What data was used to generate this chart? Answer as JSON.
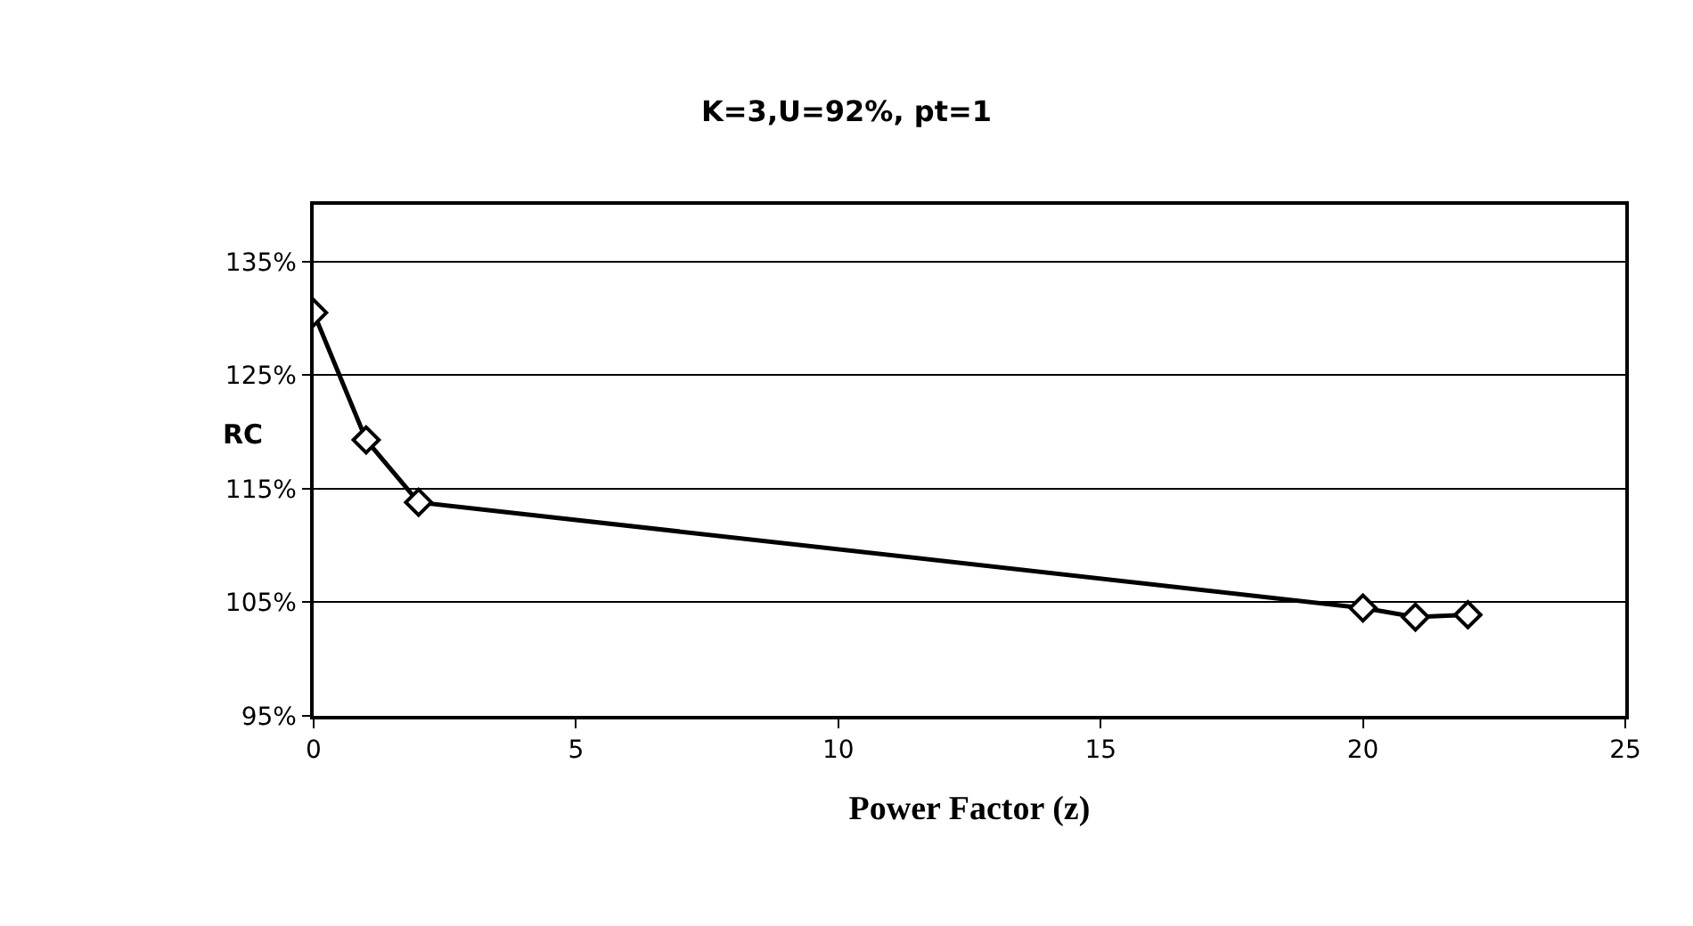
{
  "chart_data": {
    "type": "line",
    "title": "K=3,U=92%, pt=1",
    "xlabel": "Power Factor (z)",
    "ylabel": "RC",
    "x": [
      0,
      1,
      2,
      20,
      21,
      22
    ],
    "series": [
      {
        "color": "#000000",
        "values": [
          130.5,
          119.3,
          113.8,
          104.5,
          103.7,
          103.9
        ]
      }
    ],
    "xlim": [
      0,
      25
    ],
    "xticks": [
      0,
      5,
      10,
      15,
      20,
      25
    ],
    "ylim": [
      95,
      140
    ],
    "yticks": [
      {
        "value": 95,
        "label": "95%"
      },
      {
        "value": 105,
        "label": "105%"
      },
      {
        "value": 115,
        "label": "115%"
      },
      {
        "value": 125,
        "label": "125%"
      },
      {
        "value": 135,
        "label": "135%"
      }
    ],
    "grid": "y",
    "marker": "diamond",
    "line_style": "solid"
  }
}
